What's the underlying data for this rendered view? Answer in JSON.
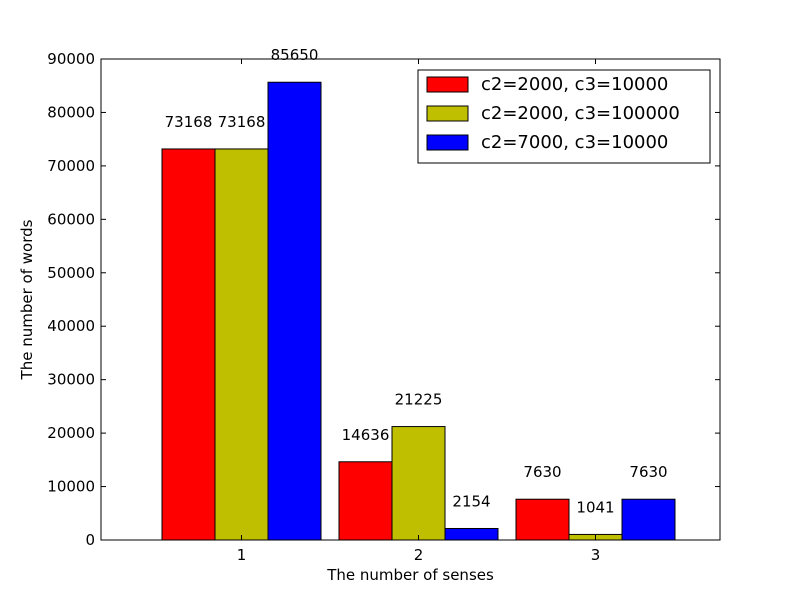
{
  "chart_data": {
    "type": "bar",
    "xlabel": "The number of senses",
    "ylabel": "The number of words",
    "categories": [
      "1",
      "2",
      "3"
    ],
    "ylim": [
      0,
      90000
    ],
    "yticks": [
      0,
      10000,
      20000,
      30000,
      40000,
      50000,
      60000,
      70000,
      80000,
      90000
    ],
    "legend_position": "top-right",
    "grid": false,
    "series": [
      {
        "name": "c2=2000, c3=10000",
        "color": "#ff0000",
        "values": [
          73168,
          14636,
          7630
        ]
      },
      {
        "name": "c2=2000, c3=100000",
        "color": "#bfbf00",
        "values": [
          73168,
          21225,
          1041
        ]
      },
      {
        "name": "c2=7000, c3=10000",
        "color": "#0000ff",
        "values": [
          85650,
          2154,
          7630
        ]
      }
    ]
  }
}
